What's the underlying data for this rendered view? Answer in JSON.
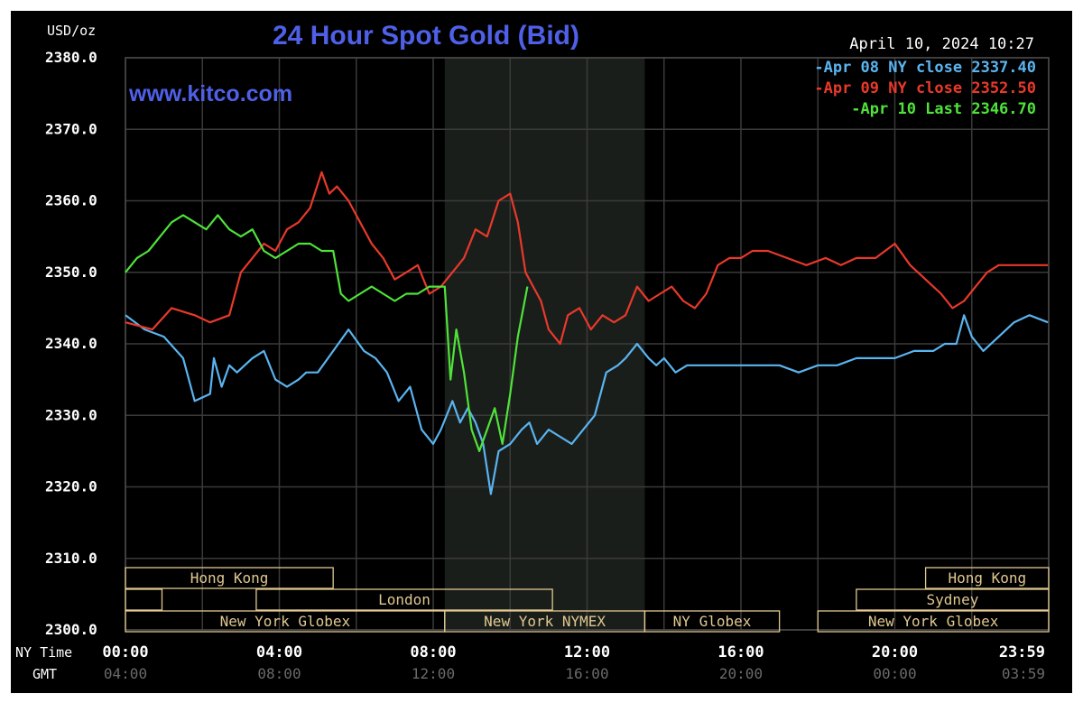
{
  "chart_data": {
    "type": "line",
    "title": "24 Hour Spot Gold (Bid)",
    "watermark": "www.kitco.com",
    "timestamp": "April 10, 2024 10:27",
    "ylabel": "USD/oz",
    "ylim": [
      2300,
      2380
    ],
    "xlim_hours": [
      0,
      24
    ],
    "grid": true,
    "legend_position": "top-right",
    "y_ticks": [
      "2380.0",
      "2370.0",
      "2360.0",
      "2350.0",
      "2340.0",
      "2330.0",
      "2320.0",
      "2310.0",
      "2300.0"
    ],
    "x_row_labels": {
      "ny": "NY Time",
      "gmt": "GMT"
    },
    "x_ticks_ny": [
      "00:00",
      "04:00",
      "08:00",
      "12:00",
      "16:00",
      "20:00",
      "23:59"
    ],
    "x_ticks_gmt": [
      "04:00",
      "08:00",
      "12:00",
      "16:00",
      "20:00",
      "00:00",
      "03:59"
    ],
    "highlight_hours": [
      8.3,
      13.5
    ],
    "series": [
      {
        "name": "Apr 08 NY close 2337.40",
        "color": "#5ab4f0",
        "x": [
          0,
          0.5,
          1,
          1.5,
          1.8,
          2.2,
          2.3,
          2.5,
          2.7,
          2.9,
          3.1,
          3.3,
          3.6,
          3.9,
          4.2,
          4.5,
          4.7,
          5.0,
          5.4,
          5.8,
          6.2,
          6.5,
          6.8,
          7.1,
          7.4,
          7.7,
          8.0,
          8.2,
          8.5,
          8.7,
          8.9,
          9.1,
          9.3,
          9.5,
          9.7,
          10.0,
          10.3,
          10.5,
          10.7,
          11.0,
          11.3,
          11.6,
          11.9,
          12.2,
          12.5,
          12.8,
          13.0,
          13.3,
          13.6,
          13.8,
          14.0,
          14.3,
          14.6,
          15.0,
          15.4,
          15.8,
          16.2,
          16.6,
          17.0,
          17.5,
          18.0,
          18.5,
          19.0,
          19.5,
          20.0,
          20.5,
          21.0,
          21.3,
          21.6,
          21.8,
          22.0,
          22.3,
          22.7,
          23.1,
          23.5,
          23.98
        ],
        "y": [
          2344,
          2342,
          2341,
          2338,
          2332,
          2333,
          2338,
          2334,
          2337,
          2336,
          2337,
          2338,
          2339,
          2335,
          2334,
          2335,
          2336,
          2336,
          2339,
          2342,
          2339,
          2338,
          2336,
          2332,
          2334,
          2328,
          2326,
          2328,
          2332,
          2329,
          2331,
          2329,
          2326,
          2319,
          2325,
          2326,
          2328,
          2329,
          2326,
          2328,
          2327,
          2326,
          2328,
          2330,
          2336,
          2337,
          2338,
          2340,
          2338,
          2337,
          2338,
          2336,
          2337,
          2337,
          2337,
          2337,
          2337,
          2337,
          2337,
          2336,
          2337,
          2337,
          2338,
          2338,
          2338,
          2339,
          2339,
          2340,
          2340,
          2344,
          2341,
          2339,
          2341,
          2343,
          2344,
          2343
        ]
      },
      {
        "name": "Apr 09 NY close 2352.50",
        "color": "#e8392b",
        "x": [
          0,
          0.7,
          1.2,
          1.8,
          2.2,
          2.7,
          3.0,
          3.3,
          3.6,
          3.9,
          4.2,
          4.5,
          4.8,
          5.1,
          5.3,
          5.5,
          5.8,
          6.1,
          6.4,
          6.7,
          7.0,
          7.3,
          7.6,
          7.9,
          8.2,
          8.5,
          8.8,
          9.1,
          9.4,
          9.7,
          10.0,
          10.2,
          10.4,
          10.6,
          10.8,
          11.0,
          11.3,
          11.5,
          11.8,
          12.1,
          12.4,
          12.7,
          13.0,
          13.3,
          13.6,
          13.9,
          14.2,
          14.5,
          14.8,
          15.1,
          15.4,
          15.7,
          16.0,
          16.3,
          16.7,
          17.2,
          17.7,
          18.2,
          18.6,
          19.0,
          19.5,
          20.0,
          20.4,
          20.8,
          21.2,
          21.5,
          21.8,
          22.1,
          22.4,
          22.7,
          23.0,
          23.4,
          23.98
        ],
        "y": [
          2343,
          2342,
          2345,
          2344,
          2343,
          2344,
          2350,
          2352,
          2354,
          2353,
          2356,
          2357,
          2359,
          2364,
          2361,
          2362,
          2360,
          2357,
          2354,
          2352,
          2349,
          2350,
          2351,
          2347,
          2348,
          2350,
          2352,
          2356,
          2355,
          2360,
          2361,
          2357,
          2350,
          2348,
          2346,
          2342,
          2340,
          2344,
          2345,
          2342,
          2344,
          2343,
          2344,
          2348,
          2346,
          2347,
          2348,
          2346,
          2345,
          2347,
          2351,
          2352,
          2352,
          2353,
          2353,
          2352,
          2351,
          2352,
          2351,
          2352,
          2352,
          2354,
          2351,
          2349,
          2347,
          2345,
          2346,
          2348,
          2350,
          2351,
          2351,
          2351,
          2351
        ]
      },
      {
        "name": "Apr 10 Last 2346.70",
        "color": "#4fe33a",
        "x": [
          0,
          0.3,
          0.6,
          0.9,
          1.2,
          1.5,
          1.8,
          2.1,
          2.4,
          2.7,
          3.0,
          3.3,
          3.6,
          3.9,
          4.2,
          4.5,
          4.8,
          5.1,
          5.4,
          5.6,
          5.8,
          6.1,
          6.4,
          6.7,
          7.0,
          7.3,
          7.6,
          7.9,
          8.1,
          8.3,
          8.45,
          8.6,
          8.8,
          9.0,
          9.2,
          9.4,
          9.6,
          9.8,
          10.0,
          10.2,
          10.45
        ],
        "y": [
          2350,
          2352,
          2353,
          2355,
          2357,
          2358,
          2357,
          2356,
          2358,
          2356,
          2355,
          2356,
          2353,
          2352,
          2353,
          2354,
          2354,
          2353,
          2353,
          2347,
          2346,
          2347,
          2348,
          2347,
          2346,
          2347,
          2347,
          2348,
          2348,
          2348,
          2335,
          2342,
          2336,
          2328,
          2325,
          2328,
          2331,
          2326,
          2333,
          2341,
          2348
        ]
      }
    ],
    "sessions": [
      {
        "label": "Hong Kong",
        "row": 0,
        "start": 0,
        "end": 5.4
      },
      {
        "label": "",
        "row": 1,
        "start": 0,
        "end": 0.95
      },
      {
        "label": "London",
        "row": 1,
        "start": 3.4,
        "end": 11.1
      },
      {
        "label": "New York Globex",
        "row": 2,
        "start": 0,
        "end": 8.3
      },
      {
        "label": "New York NYMEX",
        "row": 2,
        "start": 8.3,
        "end": 13.5
      },
      {
        "label": "NY Globex",
        "row": 2,
        "start": 13.5,
        "end": 17.0
      },
      {
        "label": "Hong Kong",
        "row": 0,
        "start": 20.8,
        "end": 24
      },
      {
        "label": "Sydney",
        "row": 1,
        "start": 19.0,
        "end": 24
      },
      {
        "label": "New York Globex",
        "row": 2,
        "start": 18.0,
        "end": 24
      }
    ]
  }
}
